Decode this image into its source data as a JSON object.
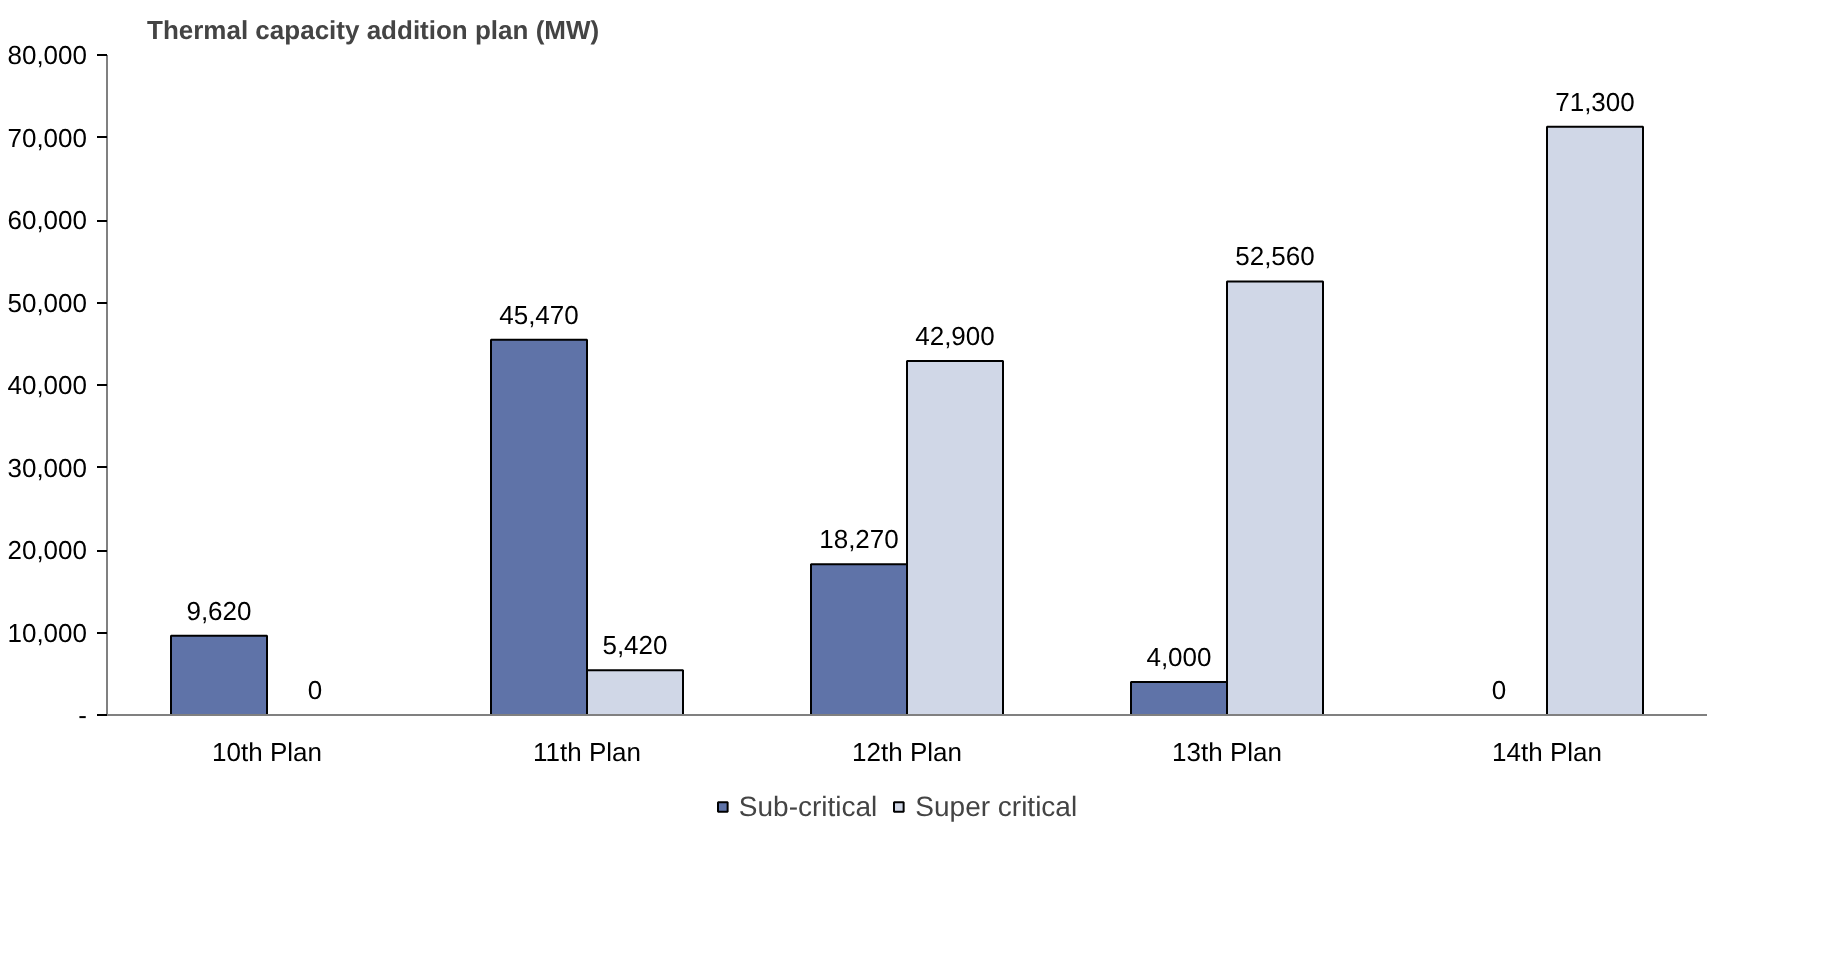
{
  "chart_data": {
    "type": "bar",
    "title": "Thermal capacity addition plan (MW)",
    "categories": [
      "10th Plan",
      "11th Plan",
      "12th Plan",
      "13th Plan",
      "14th Plan"
    ],
    "series": [
      {
        "name": "Sub-critical",
        "color": "#5f73a8",
        "values": [
          9620,
          45470,
          18270,
          4000,
          0
        ],
        "value_labels": [
          "9,620",
          "45,470",
          "18,270",
          "4,000",
          "0"
        ]
      },
      {
        "name": "Super critical",
        "color": "#d0d7e7",
        "values": [
          0,
          5420,
          42900,
          52560,
          71300
        ],
        "value_labels": [
          "0",
          "5,420",
          "42,900",
          "52,560",
          "71,300"
        ]
      }
    ],
    "ylim": [
      0,
      80000
    ],
    "yticks": [
      {
        "value": 0,
        "label": "-"
      },
      {
        "value": 10000,
        "label": "10,000"
      },
      {
        "value": 20000,
        "label": "20,000"
      },
      {
        "value": 30000,
        "label": "30,000"
      },
      {
        "value": 40000,
        "label": "40,000"
      },
      {
        "value": 50000,
        "label": "50,000"
      },
      {
        "value": 60000,
        "label": "60,000"
      },
      {
        "value": 70000,
        "label": "70,000"
      },
      {
        "value": 80000,
        "label": "80,000"
      }
    ],
    "grid": false,
    "legend": "bottom"
  }
}
